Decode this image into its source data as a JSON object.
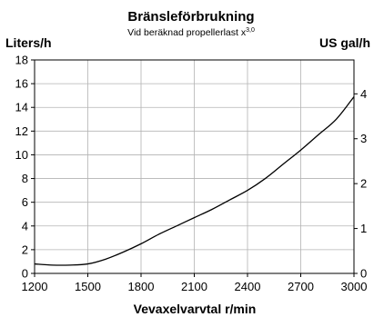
{
  "chart_data": {
    "type": "line",
    "title": "Bränsleförbrukning",
    "subtitle": "Vid beräknad propellerlast x",
    "subtitle_superscript": "3,0",
    "ylabel_left": "Liters/h",
    "ylabel_right": "US gal/h",
    "xlabel": "Vevaxelvarvtal r/min",
    "xlim": [
      1200,
      3000
    ],
    "ylim": [
      0,
      18
    ],
    "ylim_right": [
      0,
      4.755
    ],
    "x_ticks": [
      "1200",
      "1500",
      "1800",
      "2100",
      "2400",
      "2700",
      "3000"
    ],
    "y_ticks_left": [
      "0",
      "2",
      "4",
      "6",
      "8",
      "10",
      "12",
      "14",
      "16",
      "18"
    ],
    "y_ticks_right": [
      "0",
      "1",
      "2",
      "3",
      "4"
    ],
    "grid": true,
    "series": [
      {
        "x": [
          1200,
          1300,
          1400,
          1500,
          1600,
          1700,
          1800,
          1900,
          2000,
          2100,
          2200,
          2300,
          2400,
          2500,
          2600,
          2700,
          2800,
          2900,
          3000
        ],
        "values": [
          0.8,
          0.7,
          0.7,
          0.8,
          1.2,
          1.8,
          2.5,
          3.3,
          4.0,
          4.7,
          5.4,
          6.2,
          7.0,
          8.0,
          9.2,
          10.4,
          11.7,
          13.0,
          14.9
        ]
      }
    ]
  }
}
